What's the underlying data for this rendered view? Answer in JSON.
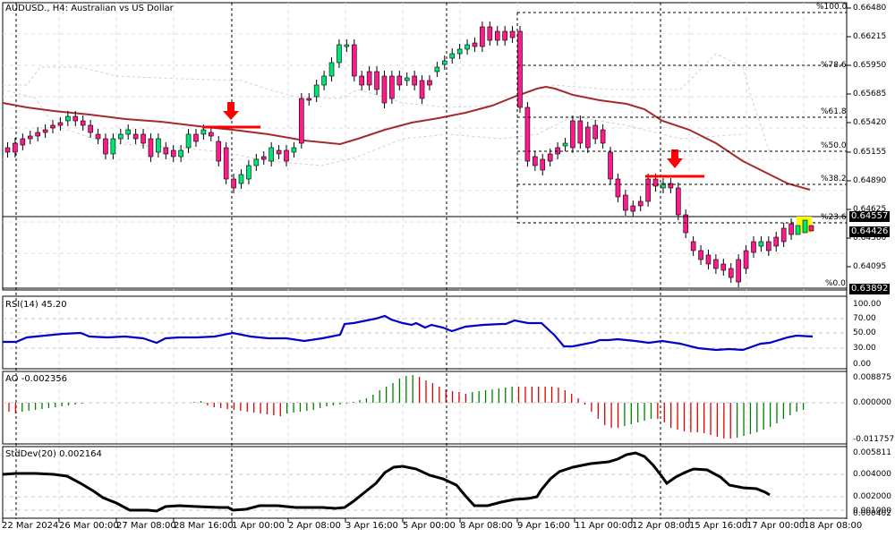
{
  "window": {
    "symbol_title": "AUDUSD., H4:  Australian vs US Dollar"
  },
  "price_axis": {
    "labels": [
      "0.66480",
      "0.66215",
      "0.65950",
      "0.65685",
      "0.65420",
      "0.65155",
      "0.64890",
      "0.64625",
      "0.64360",
      "0.64095"
    ],
    "ask_tag": "0.64557",
    "bid_tag": "0.64426",
    "low_tag": "0.63892"
  },
  "fibonacci": {
    "levels": [
      "%100.0",
      "%78.6",
      "%61.8",
      "%50.0",
      "%38.2",
      "%23.6",
      "%0.0"
    ]
  },
  "indicators": {
    "rsi": {
      "title": "RSI(14) 45.20",
      "axis": [
        "100.00",
        "70.00",
        "50.00",
        "30.00",
        "0.00"
      ],
      "color": "#0000c8"
    },
    "ao": {
      "title": "AO -0.002356",
      "axis": [
        "0.008875",
        "0.000000",
        "-0.011757"
      ],
      "up_color": "#008000",
      "down_color": "#e00000"
    },
    "stddev": {
      "title": "StdDev(20) 0.002164",
      "axis": [
        "0.005811",
        "0.004000",
        "0.002000",
        "0.000402"
      ],
      "overlap_label": "0.001000",
      "color": "#000000"
    }
  },
  "time_axis": {
    "labels": [
      "22 Mar 2024",
      "26 Mar 00:00",
      "27 Mar 08:00",
      "28 Mar 16:00",
      "1 Apr 00:00",
      "2 Apr 08:00",
      "3 Apr 16:00",
      "5 Apr 00:00",
      "8 Apr 08:00",
      "9 Apr 16:00",
      "11 Apr 00:00",
      "12 Apr 08:00",
      "15 Apr 16:00",
      "17 Apr 00:00",
      "18 Apr 08:00"
    ]
  },
  "colors": {
    "bull_candle": "#00e676",
    "bear_candle": "#ff1a8c",
    "moving_average": "#a52a2a",
    "annotation_red": "#ff0000",
    "highlight_yellow": "#ffff00"
  },
  "annotations": [
    {
      "type": "down-arrow",
      "label": "sell-signal-1"
    },
    {
      "type": "down-arrow",
      "label": "sell-signal-2"
    }
  ]
}
